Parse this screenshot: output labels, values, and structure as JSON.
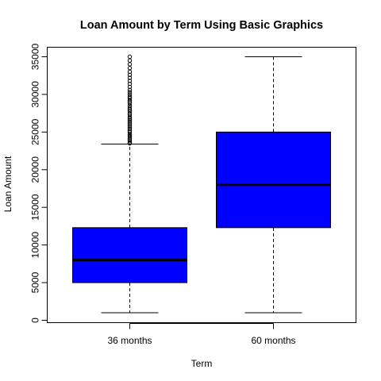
{
  "chart_data": {
    "type": "box",
    "title": "Loan Amount by Term Using Basic Graphics",
    "xlabel": "Term",
    "ylabel": "Loan Amount",
    "categories": [
      "36 months",
      "60 months"
    ],
    "ylim": [
      0,
      35000
    ],
    "yticks": [
      0,
      5000,
      10000,
      15000,
      20000,
      25000,
      30000,
      35000
    ],
    "grid": false,
    "box_color": "#0000ff",
    "boxes": [
      {
        "category": "36 months",
        "whisker_low": 1000,
        "q1": 5000,
        "median": 8000,
        "q3": 12300,
        "whisker_high": 23400,
        "outliers": [
          23500,
          23600,
          23800,
          24000,
          24200,
          24400,
          24500,
          24700,
          25000,
          25200,
          25400,
          25600,
          25800,
          26000,
          26200,
          26400,
          26600,
          26800,
          27000,
          27300,
          27500,
          27800,
          28000,
          28200,
          28500,
          28800,
          29000,
          29200,
          29500,
          29700,
          30000,
          30300,
          30600,
          31000,
          31400,
          31800,
          32200,
          32600,
          33000,
          33500,
          34000,
          34500,
          35000
        ]
      },
      {
        "category": "60 months",
        "whisker_low": 1000,
        "q1": 12300,
        "median": 18000,
        "q3": 25000,
        "whisker_high": 35000,
        "outliers": []
      }
    ]
  }
}
